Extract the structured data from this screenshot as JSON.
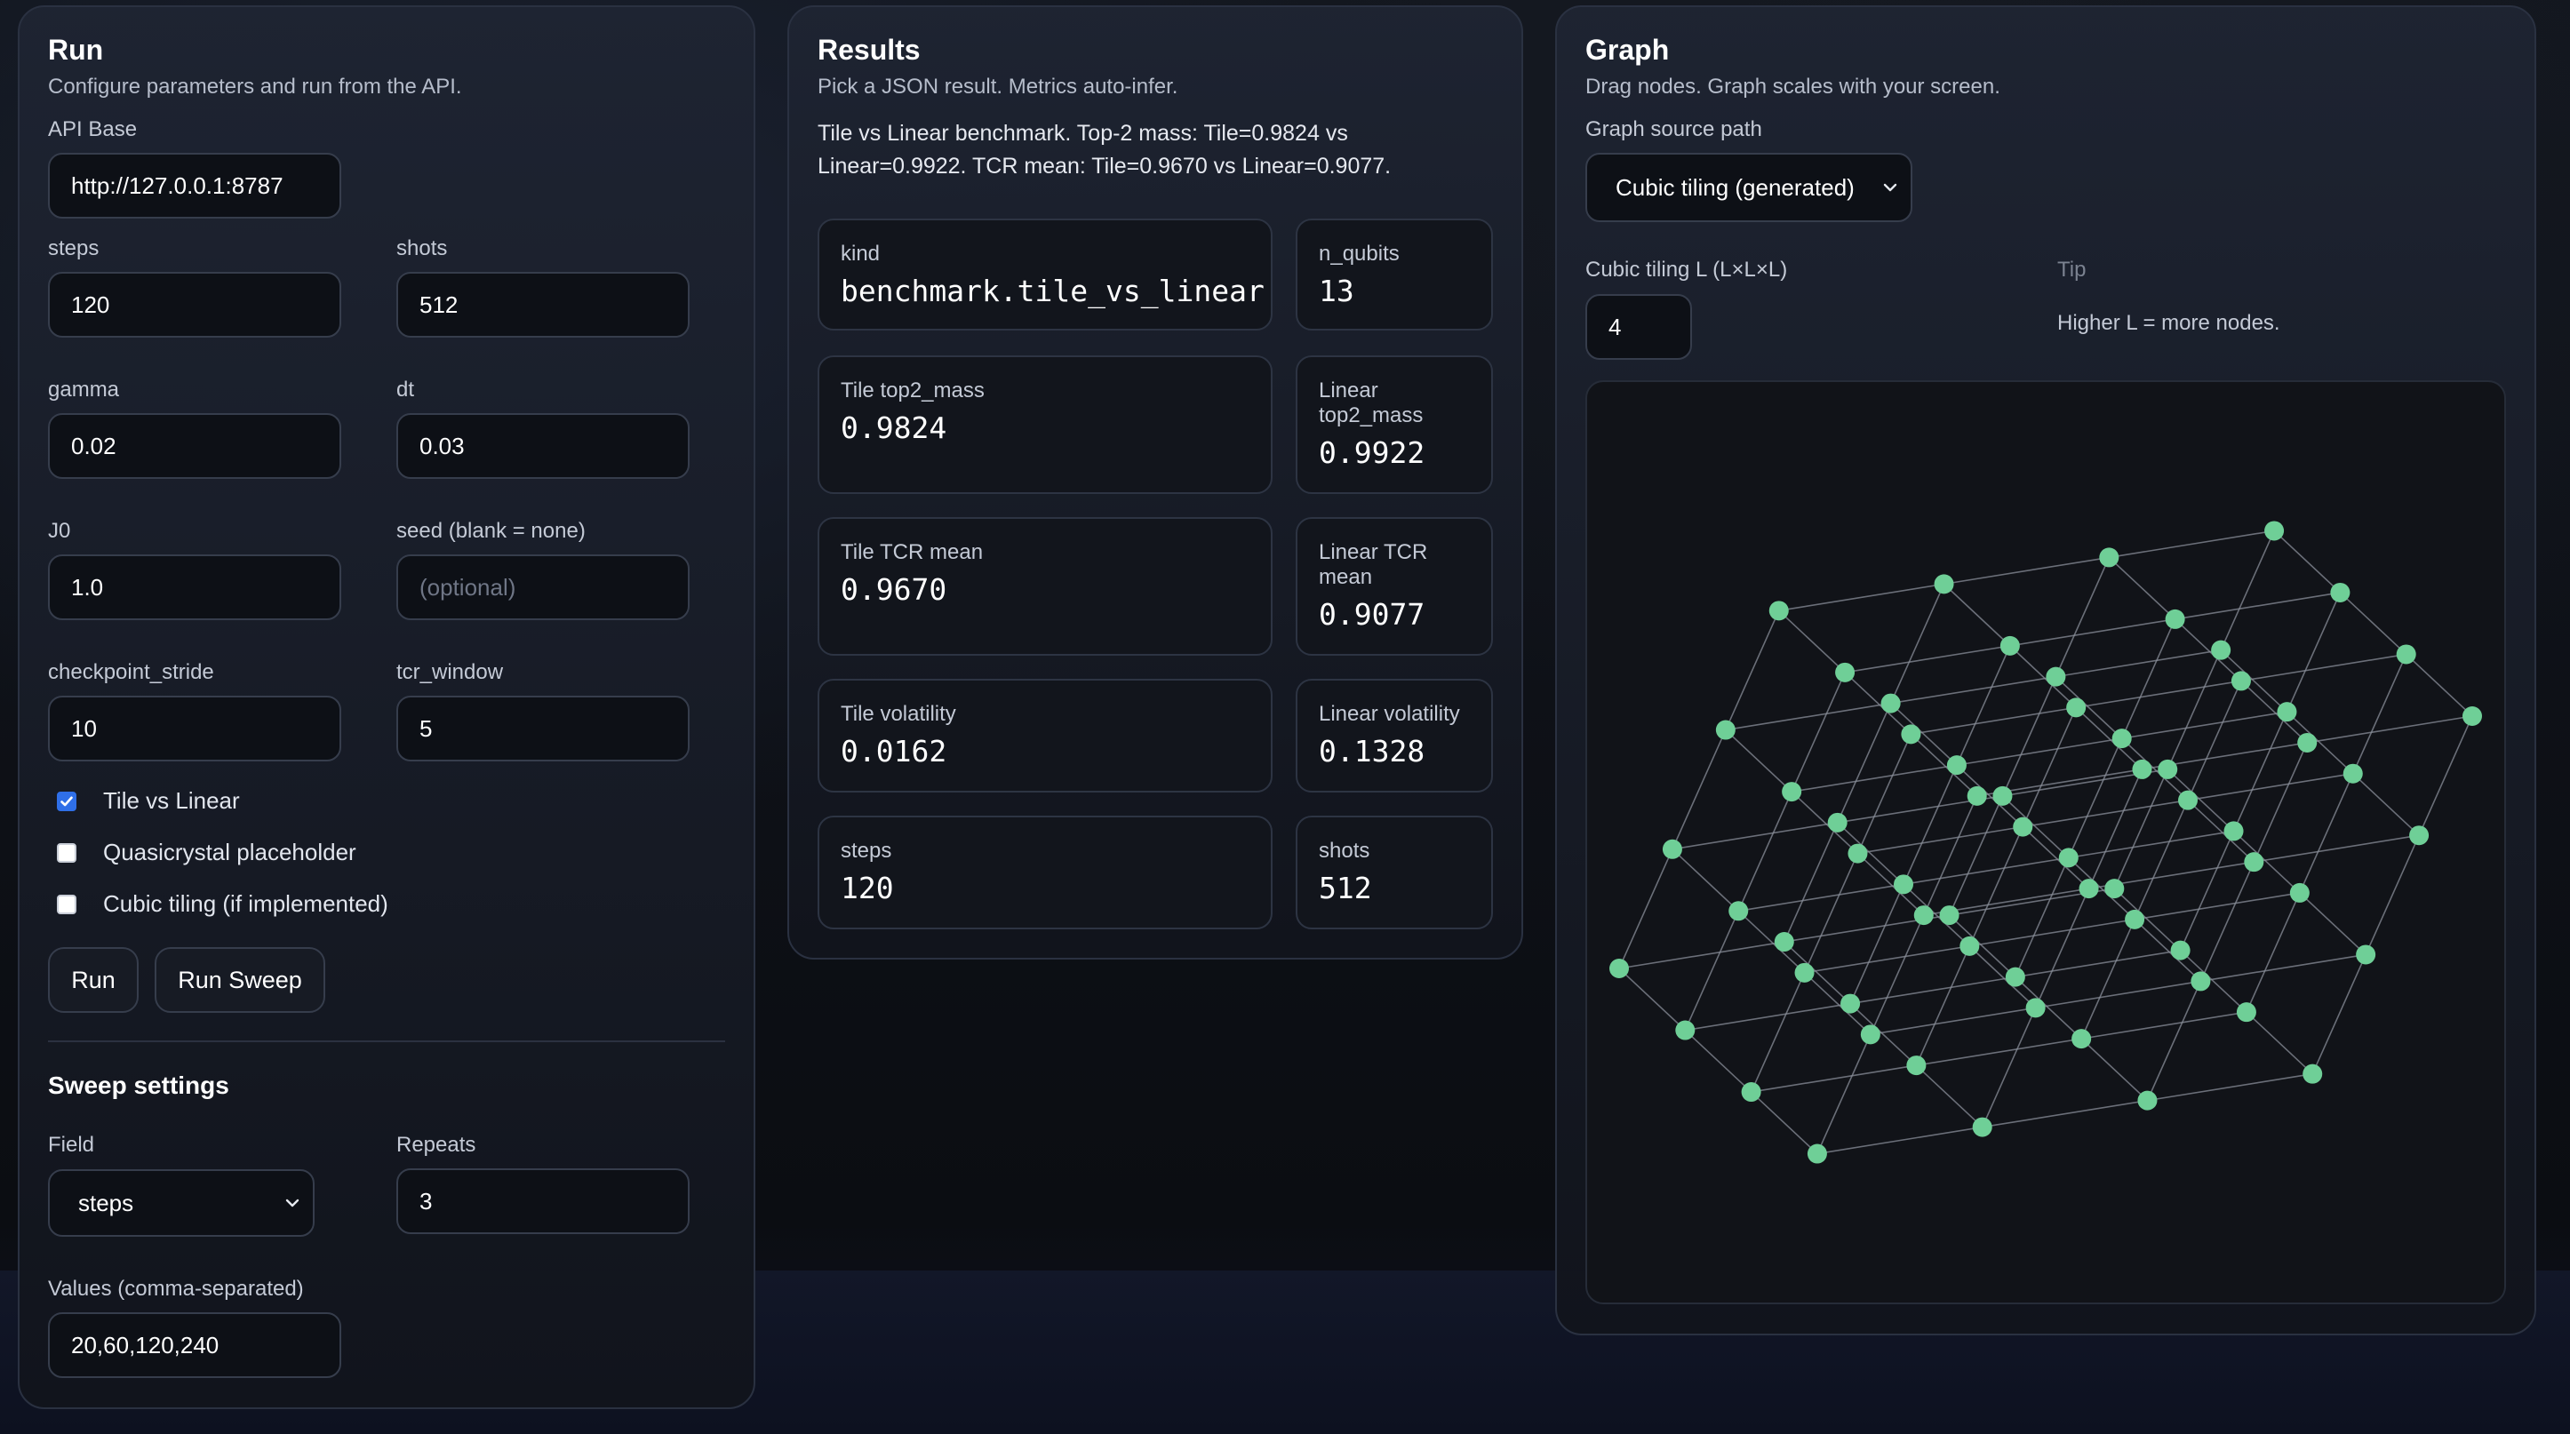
{
  "run": {
    "title": "Run",
    "subtitle": "Configure parameters and run from the API.",
    "api_base": {
      "label": "API Base",
      "value": "http://127.0.0.1:8787"
    },
    "steps": {
      "label": "steps",
      "value": "120"
    },
    "shots": {
      "label": "shots",
      "value": "512"
    },
    "gamma": {
      "label": "gamma",
      "value": "0.02"
    },
    "dt": {
      "label": "dt",
      "value": "0.03"
    },
    "j0": {
      "label": "J0",
      "value": "1.0"
    },
    "seed": {
      "label": "seed (blank = none)",
      "value": "",
      "placeholder": "(optional)"
    },
    "checkpoint_stride": {
      "label": "checkpoint_stride",
      "value": "10"
    },
    "tcr_window": {
      "label": "tcr_window",
      "value": "5"
    },
    "checks": [
      {
        "label": "Tile vs Linear",
        "checked": true
      },
      {
        "label": "Quasicrystal placeholder",
        "checked": false
      },
      {
        "label": "Cubic tiling (if implemented)",
        "checked": false
      }
    ],
    "run_label": "Run",
    "sweep_label": "Run Sweep",
    "sweep": {
      "title": "Sweep settings",
      "field_label": "Field",
      "field_value": "steps",
      "repeats_label": "Repeats",
      "repeats_value": "3",
      "values_label": "Values (comma-separated)",
      "values_value": "20,60,120,240"
    }
  },
  "results": {
    "title": "Results",
    "subtitle": "Pick a JSON result. Metrics auto-infer.",
    "summary_line1": "Tile vs Linear benchmark. Top-2 mass: Tile=0.9824 vs",
    "summary_line2": "Linear=0.9922. TCR mean: Tile=0.9670 vs Linear=0.9077.",
    "metrics": [
      {
        "label": "kind",
        "value": "benchmark.tile_vs_linear"
      },
      {
        "label": "n_qubits",
        "value": "13"
      },
      {
        "label": "Tile top2_mass",
        "value": "0.9824"
      },
      {
        "label": "Linear top2_mass",
        "value": "0.9922"
      },
      {
        "label": "Tile TCR mean",
        "value": "0.9670"
      },
      {
        "label": "Linear TCR mean",
        "value": "0.9077"
      },
      {
        "label": "Tile volatility",
        "value": "0.0162"
      },
      {
        "label": "Linear volatility",
        "value": "0.1328"
      },
      {
        "label": "steps",
        "value": "120"
      },
      {
        "label": "shots",
        "value": "512"
      }
    ]
  },
  "graph": {
    "title": "Graph",
    "subtitle": "Drag nodes. Graph scales with your screen.",
    "source_label": "Graph source path",
    "source_value": "Cubic tiling (generated)",
    "l_label": "Cubic tiling L (L×L×L)",
    "l_value": "4",
    "tip_label": "Tip",
    "tip_text": "Higher L = more nodes.",
    "node_count": 64,
    "node_color": "#6fcf97",
    "edge_color": "#8a8f99"
  }
}
